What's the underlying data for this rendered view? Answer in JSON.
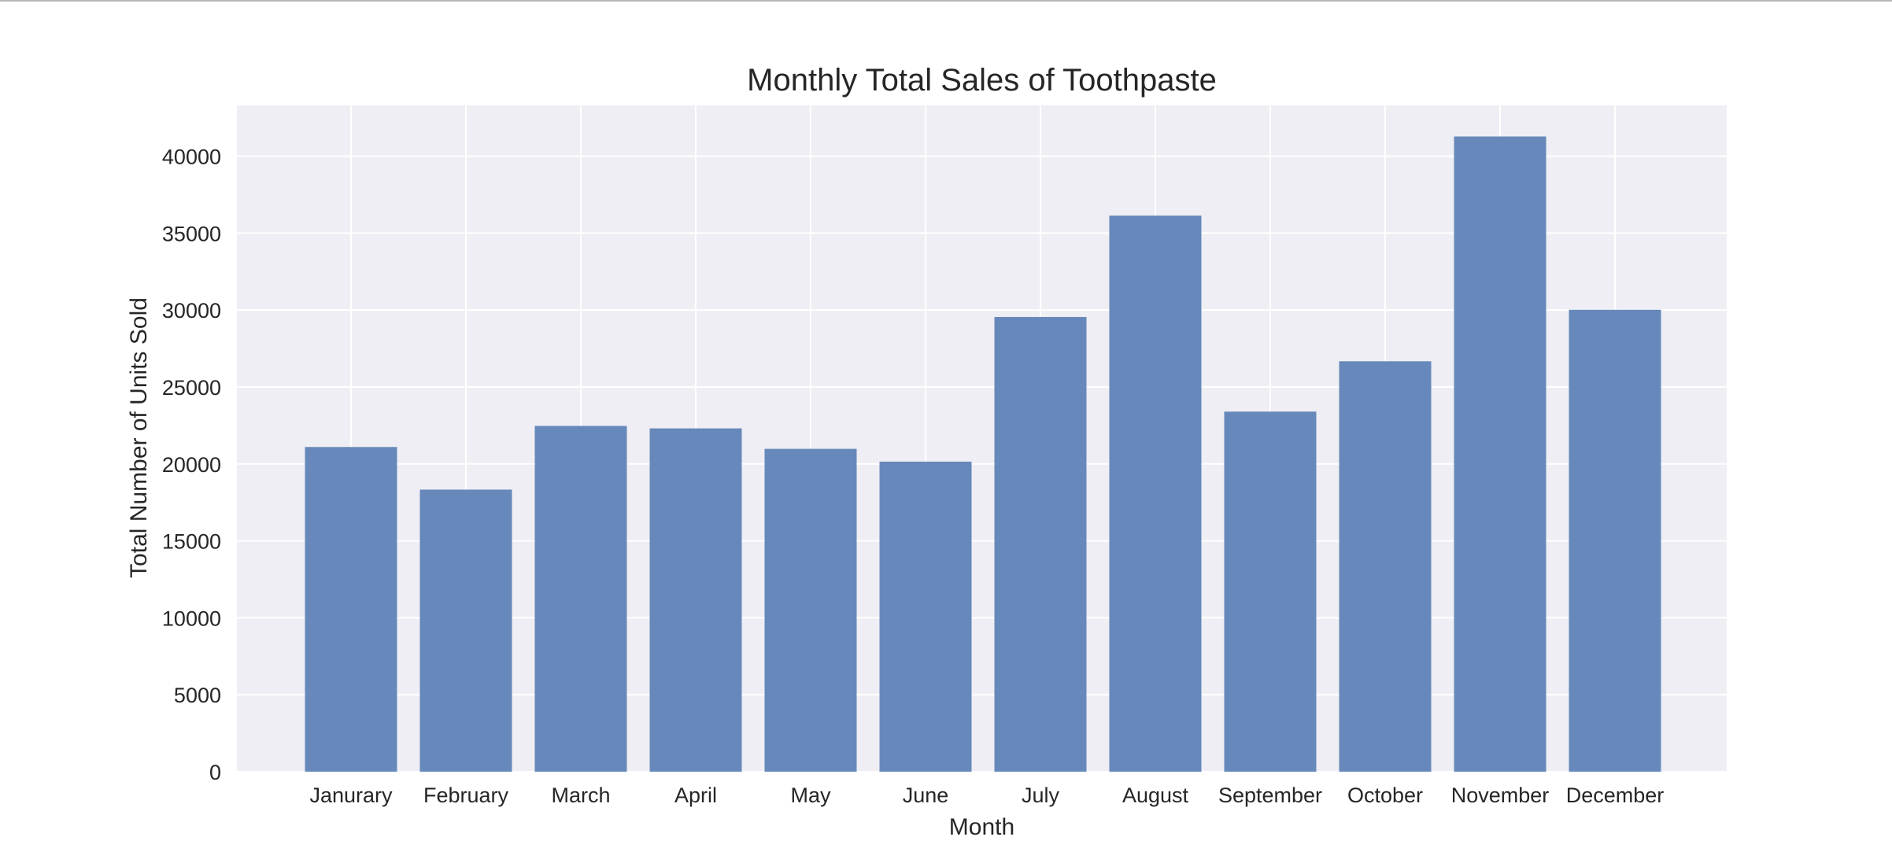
{
  "chart_data": {
    "type": "bar",
    "title": "Monthly Total Sales of Toothpaste",
    "xlabel": "Month",
    "ylabel": "Total Number of Units Sold",
    "categories": [
      "Janurary",
      "February",
      "March",
      "April",
      "May",
      "June",
      "July",
      "August",
      "September",
      "October",
      "November",
      "December"
    ],
    "values": [
      21100,
      18330,
      22470,
      22310,
      20980,
      20150,
      29550,
      36140,
      23400,
      26670,
      41280,
      30020
    ],
    "ylim": [
      0,
      43300
    ],
    "yticks": [
      0,
      5000,
      10000,
      15000,
      20000,
      25000,
      30000,
      35000,
      40000
    ],
    "grid": true,
    "legend": "none",
    "colors": {
      "bar": "#6788ba",
      "plot_background": "#eeeef4",
      "grid": "#ffffff",
      "text": "#262626"
    }
  }
}
